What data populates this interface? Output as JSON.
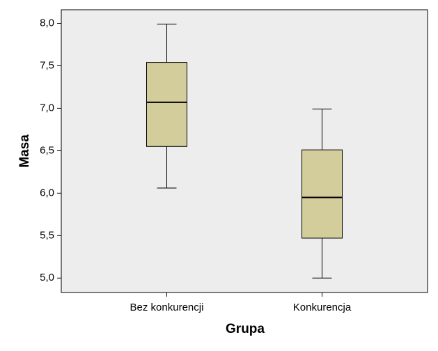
{
  "chart_data": {
    "type": "box",
    "x_label": "Grupa",
    "y_label": "Masa",
    "categories": [
      "Bez konkurencji",
      "Konkurencja"
    ],
    "boxes": [
      {
        "min": 6.06,
        "q1": 6.55,
        "median": 7.07,
        "q3": 7.54,
        "max": 7.99
      },
      {
        "min": 5.0,
        "q1": 5.47,
        "median": 5.95,
        "q3": 6.51,
        "max": 6.99
      }
    ],
    "color": "#d3cd9b",
    "ylim": [
      4.83,
      8.16
    ],
    "yticks": [
      {
        "value": 5.0,
        "label": "5,0"
      },
      {
        "value": 5.5,
        "label": "5,5"
      },
      {
        "value": 6.0,
        "label": "6,0"
      },
      {
        "value": 6.5,
        "label": "6,5"
      },
      {
        "value": 7.0,
        "label": "7,0"
      },
      {
        "value": 7.5,
        "label": "7,5"
      },
      {
        "value": 8.0,
        "label": "8,0"
      }
    ]
  }
}
